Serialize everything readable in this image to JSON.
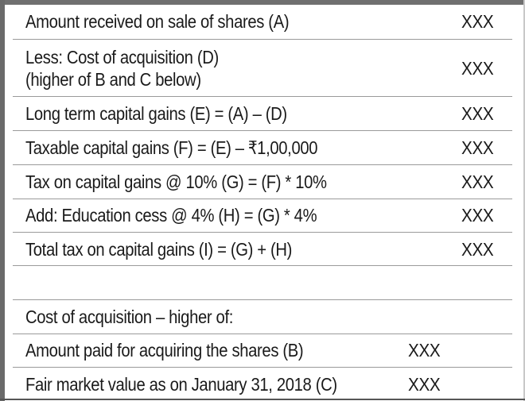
{
  "tax_table": {
    "rows": [
      {
        "label": "Amount received on sale of shares (A)",
        "amount": "XXX"
      },
      {
        "label_line1": "Less: Cost of acquisition (D)",
        "label_line2": "(higher of B and C below)",
        "amount": "XXX"
      },
      {
        "label": "Long term capital gains (E) = (A) – (D)",
        "amount": "XXX"
      },
      {
        "label": "Taxable capital gains (F) = (E) – ₹1,00,000",
        "amount": "XXX"
      },
      {
        "label": "Tax on capital gains @ 10% (G) = (F) * 10%",
        "amount": "XXX"
      },
      {
        "label": "Add: Education cess @ 4% (H) = (G) * 4%",
        "amount": "XXX"
      },
      {
        "label": "Total tax on capital gains (I) = (G) + (H)",
        "amount": "XXX"
      }
    ]
  },
  "acquisition_table": {
    "heading": "Cost of acquisition – higher of:",
    "rows": [
      {
        "label": "Amount paid for acquiring the shares (B)",
        "amount": "XXX"
      },
      {
        "label": "Fair market value as on January 31, 2018 (C)",
        "amount": "XXX"
      }
    ]
  }
}
